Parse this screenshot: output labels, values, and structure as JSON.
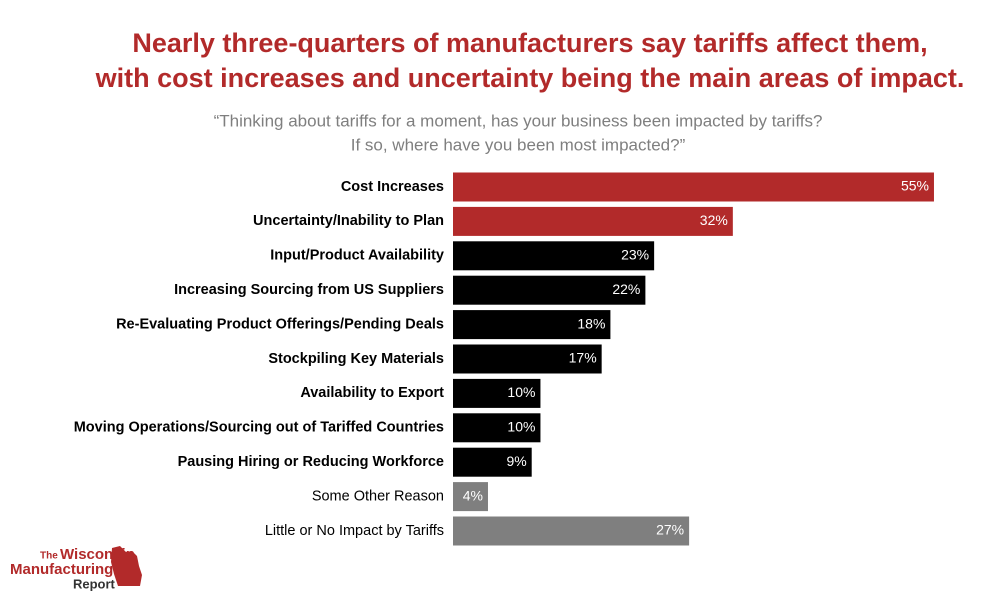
{
  "chart_data": {
    "type": "bar",
    "orientation": "horizontal",
    "title": [
      "Nearly three-quarters of manufacturers say tariffs affect them,",
      "with cost increases and uncertainty being the main areas of impact."
    ],
    "subtitle": [
      "“Thinking about tariffs for a moment, has your business been impacted by tariffs?",
      "If so, where have you been most impacted?”"
    ],
    "categories": [
      "Cost Increases",
      "Uncertainty/Inability to Plan",
      "Input/Product Availability",
      "Increasing Sourcing from US Suppliers",
      "Re-Evaluating Product Offerings/Pending Deals",
      "Stockpiling Key Materials",
      "Availability to Export",
      "Moving Operations/Sourcing out of Tariffed Countries",
      "Pausing Hiring or Reducing Workforce",
      "Some Other Reason",
      "Little or No Impact by Tariffs"
    ],
    "values": [
      55,
      32,
      23,
      22,
      18,
      17,
      10,
      10,
      9,
      4,
      27
    ],
    "value_labels": [
      "55%",
      "32%",
      "23%",
      "22%",
      "18%",
      "17%",
      "10%",
      "10%",
      "9%",
      "4%",
      "27%"
    ],
    "colors": [
      "#b22a2a",
      "#b22a2a",
      "#000000",
      "#000000",
      "#000000",
      "#000000",
      "#000000",
      "#000000",
      "#000000",
      "#7f7f7f",
      "#7f7f7f"
    ]
  },
  "logo": {
    "lines": [
      "The",
      "Wisconsin",
      "Manufacturing",
      "Report"
    ]
  }
}
